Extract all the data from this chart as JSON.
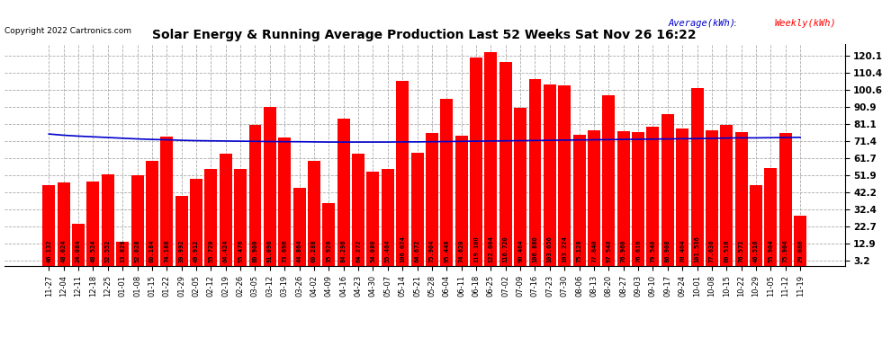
{
  "title": "Solar Energy & Running Average Production Last 52 Weeks Sat Nov 26 16:22",
  "copyright": "Copyright 2022 Cartronics.com",
  "ylabel_right_ticks": [
    3.2,
    12.9,
    22.7,
    32.4,
    42.2,
    51.9,
    61.7,
    71.4,
    81.1,
    90.9,
    100.6,
    110.4,
    120.1
  ],
  "bar_color": "#ff0000",
  "avg_line_color": "#0000cc",
  "background_color": "#ffffff",
  "plot_bg_color": "#ffffff",
  "legend_avg": "Average(kWh)",
  "legend_weekly": "Weekly(kWh)",
  "categories": [
    "11-27",
    "12-04",
    "12-11",
    "12-18",
    "12-25",
    "01-01",
    "01-08",
    "01-15",
    "01-22",
    "01-29",
    "02-05",
    "02-12",
    "02-19",
    "02-26",
    "03-05",
    "03-12",
    "03-19",
    "03-26",
    "04-02",
    "04-09",
    "04-16",
    "04-23",
    "04-30",
    "05-07",
    "05-14",
    "05-21",
    "05-28",
    "06-04",
    "06-11",
    "06-18",
    "06-25",
    "07-02",
    "07-09",
    "07-16",
    "07-23",
    "07-30",
    "08-06",
    "08-13",
    "08-20",
    "08-27",
    "09-03",
    "09-10",
    "09-17",
    "09-24",
    "10-01",
    "10-08",
    "10-15",
    "10-22",
    "10-29",
    "11-05",
    "11-12",
    "11-19"
  ],
  "weekly_values": [
    46.132,
    48.024,
    24.084,
    48.524,
    52.552,
    13.828,
    52.028,
    60.184,
    74.188,
    39.992,
    49.912,
    55.72,
    64.424,
    55.476,
    80.9,
    91.096,
    73.696,
    44.864,
    60.288,
    35.92,
    84.296,
    64.272,
    54.08,
    55.464,
    106.024,
    64.672,
    75.904,
    95.448,
    74.62,
    119.1,
    122.004,
    116.72,
    90.464,
    106.88,
    103.656,
    103.224,
    75.128,
    77.84,
    97.548,
    76.96,
    76.616,
    79.54,
    86.908,
    78.404,
    101.536,
    77.636,
    80.516,
    76.572,
    46.516,
    55.904,
    75.904,
    29.088
  ],
  "avg_values": [
    75.5,
    74.8,
    74.3,
    73.9,
    73.5,
    73.1,
    72.7,
    72.4,
    72.2,
    71.9,
    71.7,
    71.6,
    71.5,
    71.4,
    71.3,
    71.2,
    71.1,
    71.1,
    71.0,
    70.9,
    70.9,
    70.9,
    70.9,
    70.9,
    71.0,
    71.0,
    71.1,
    71.2,
    71.3,
    71.4,
    71.5,
    71.6,
    71.7,
    71.8,
    71.9,
    72.0,
    72.1,
    72.2,
    72.3,
    72.4,
    72.5,
    72.6,
    72.7,
    72.8,
    72.9,
    73.0,
    73.2,
    73.3,
    73.3,
    73.4,
    73.5,
    73.6
  ],
  "ylim": [
    0,
    127
  ],
  "label_fontsize": 5.0,
  "tick_fontsize": 7.5,
  "xtick_fontsize": 6.0
}
